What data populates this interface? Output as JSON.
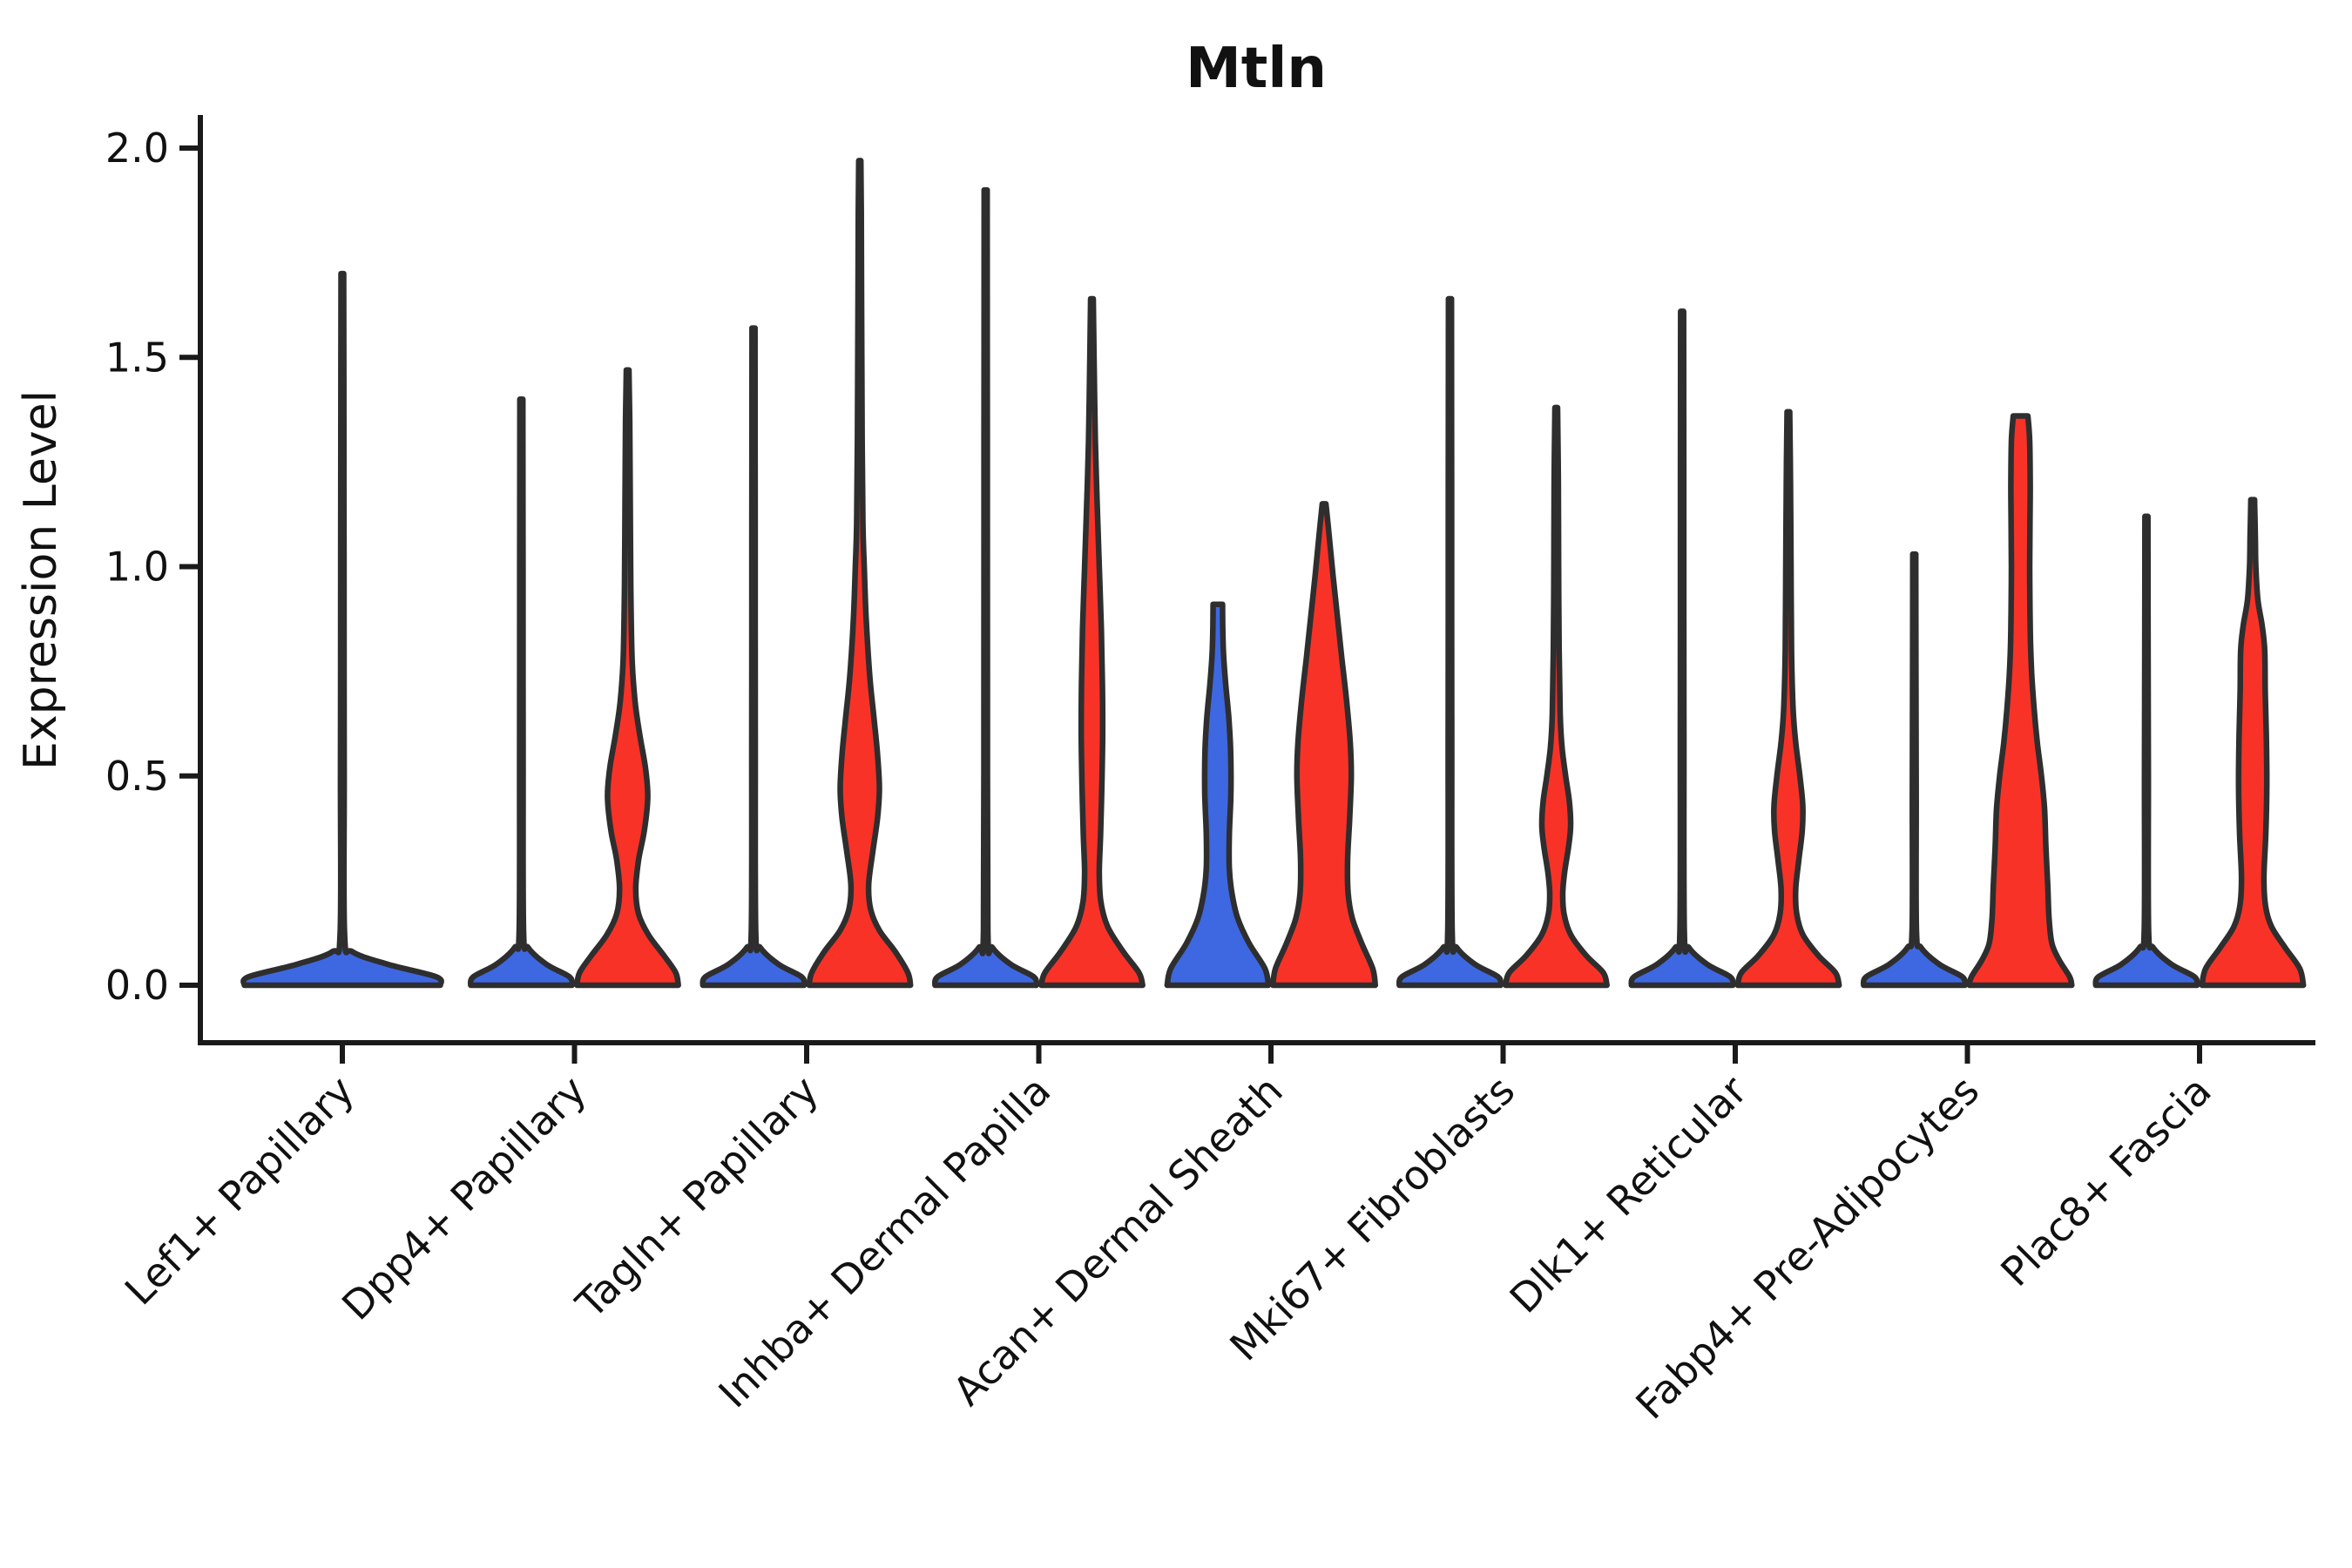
{
  "title": "Mtln",
  "ylabel": "Expression Level",
  "chart_data": {
    "type": "violin",
    "title": "Mtln",
    "xlabel": "",
    "ylabel": "Expression Level",
    "ylim": [
      -0.14,
      2.07
    ],
    "yticks": [
      "0.0",
      "0.5",
      "1.0",
      "1.5",
      "2.0"
    ],
    "ytick_values": [
      0.0,
      0.5,
      1.0,
      1.5,
      2.0
    ],
    "grid": false,
    "legend": "none",
    "categories": [
      "Lef1+ Papillary",
      "Dpp4+ Papillary",
      "Tagln+ Papillary",
      "Inhba+ Dermal Papilla",
      "Acan+ Dermal Sheath",
      "Mki67+ Fibroblasts",
      "Dlk1+ Reticular",
      "Fabp4+ Pre-Adipocytes",
      "Plac8+ Fascia"
    ],
    "groups": [
      {
        "key": "blue",
        "color": "#3E68E1"
      },
      {
        "key": "red",
        "color": "#F93228"
      }
    ],
    "outline_color": "#2E2E2E",
    "axis_color": "#1A1A1A",
    "violins": [
      {
        "category": 0,
        "group": "blue",
        "span": "full",
        "cap": "point",
        "max": 1.7,
        "profile": [
          [
            0,
            0.97
          ],
          [
            0.02,
            0.93
          ],
          [
            0.05,
            0.45
          ],
          [
            0.08,
            0.1
          ],
          [
            0.12,
            0.022
          ],
          [
            0.5,
            0.018
          ],
          [
            1.0,
            0.016
          ],
          [
            1.4,
            0.015
          ],
          [
            1.7,
            0.013
          ]
        ]
      },
      {
        "category": 1,
        "group": "blue",
        "span": "half",
        "cap": "point",
        "max": 1.4,
        "profile": [
          [
            0,
            0.97
          ],
          [
            0.02,
            0.92
          ],
          [
            0.05,
            0.48
          ],
          [
            0.09,
            0.13
          ],
          [
            0.13,
            0.042
          ],
          [
            0.55,
            0.034
          ],
          [
            1.0,
            0.031
          ],
          [
            1.4,
            0.028
          ]
        ]
      },
      {
        "category": 1,
        "group": "red",
        "span": "half",
        "cap": "point",
        "max": 1.47,
        "profile": [
          [
            0,
            0.97
          ],
          [
            0.03,
            0.92
          ],
          [
            0.07,
            0.7
          ],
          [
            0.12,
            0.4
          ],
          [
            0.17,
            0.21
          ],
          [
            0.23,
            0.155
          ],
          [
            0.3,
            0.21
          ],
          [
            0.37,
            0.32
          ],
          [
            0.45,
            0.385
          ],
          [
            0.52,
            0.34
          ],
          [
            0.6,
            0.23
          ],
          [
            0.68,
            0.14
          ],
          [
            0.78,
            0.085
          ],
          [
            0.95,
            0.06
          ],
          [
            1.15,
            0.05
          ],
          [
            1.35,
            0.04
          ],
          [
            1.47,
            0.025
          ]
        ]
      },
      {
        "category": 2,
        "group": "blue",
        "span": "half",
        "cap": "point",
        "max": 1.57,
        "profile": [
          [
            0,
            0.97
          ],
          [
            0.02,
            0.92
          ],
          [
            0.05,
            0.48
          ],
          [
            0.09,
            0.13
          ],
          [
            0.13,
            0.042
          ],
          [
            0.6,
            0.034
          ],
          [
            1.1,
            0.031
          ],
          [
            1.57,
            0.028
          ]
        ]
      },
      {
        "category": 2,
        "group": "red",
        "span": "half",
        "cap": "point",
        "max": 1.97,
        "profile": [
          [
            0,
            0.97
          ],
          [
            0.03,
            0.92
          ],
          [
            0.08,
            0.68
          ],
          [
            0.13,
            0.38
          ],
          [
            0.18,
            0.21
          ],
          [
            0.24,
            0.17
          ],
          [
            0.32,
            0.25
          ],
          [
            0.4,
            0.34
          ],
          [
            0.47,
            0.375
          ],
          [
            0.55,
            0.34
          ],
          [
            0.64,
            0.27
          ],
          [
            0.74,
            0.19
          ],
          [
            0.88,
            0.12
          ],
          [
            1.0,
            0.085
          ],
          [
            1.1,
            0.06
          ],
          [
            1.3,
            0.045
          ],
          [
            1.6,
            0.035
          ],
          [
            1.85,
            0.028
          ],
          [
            1.97,
            0.02
          ]
        ]
      },
      {
        "category": 3,
        "group": "blue",
        "span": "half",
        "cap": "point",
        "max": 1.9,
        "profile": [
          [
            0,
            0.97
          ],
          [
            0.02,
            0.92
          ],
          [
            0.05,
            0.48
          ],
          [
            0.09,
            0.13
          ],
          [
            0.13,
            0.042
          ],
          [
            0.7,
            0.034
          ],
          [
            1.3,
            0.031
          ],
          [
            1.9,
            0.028
          ]
        ]
      },
      {
        "category": 3,
        "group": "red",
        "span": "half",
        "cap": "point",
        "max": 1.64,
        "profile": [
          [
            0,
            0.97
          ],
          [
            0.03,
            0.9
          ],
          [
            0.08,
            0.6
          ],
          [
            0.14,
            0.3
          ],
          [
            0.2,
            0.17
          ],
          [
            0.27,
            0.14
          ],
          [
            0.36,
            0.165
          ],
          [
            0.48,
            0.19
          ],
          [
            0.6,
            0.205
          ],
          [
            0.72,
            0.2
          ],
          [
            0.85,
            0.18
          ],
          [
            1.0,
            0.14
          ],
          [
            1.15,
            0.1
          ],
          [
            1.3,
            0.065
          ],
          [
            1.5,
            0.04
          ],
          [
            1.64,
            0.025
          ]
        ]
      },
      {
        "category": 4,
        "group": "blue",
        "span": "half",
        "cap": "flat",
        "max": 0.91,
        "profile": [
          [
            0,
            0.97
          ],
          [
            0.04,
            0.9
          ],
          [
            0.1,
            0.6
          ],
          [
            0.16,
            0.38
          ],
          [
            0.22,
            0.27
          ],
          [
            0.28,
            0.22
          ],
          [
            0.36,
            0.22
          ],
          [
            0.46,
            0.25
          ],
          [
            0.56,
            0.245
          ],
          [
            0.64,
            0.21
          ],
          [
            0.72,
            0.15
          ],
          [
            0.79,
            0.11
          ],
          [
            0.85,
            0.095
          ],
          [
            0.91,
            0.09
          ]
        ]
      },
      {
        "category": 4,
        "group": "red",
        "span": "half",
        "cap": "point",
        "max": 1.15,
        "profile": [
          [
            0,
            0.98
          ],
          [
            0.04,
            0.93
          ],
          [
            0.1,
            0.72
          ],
          [
            0.16,
            0.54
          ],
          [
            0.22,
            0.46
          ],
          [
            0.3,
            0.45
          ],
          [
            0.4,
            0.49
          ],
          [
            0.5,
            0.52
          ],
          [
            0.58,
            0.5
          ],
          [
            0.68,
            0.43
          ],
          [
            0.78,
            0.34
          ],
          [
            0.88,
            0.255
          ],
          [
            0.98,
            0.17
          ],
          [
            1.07,
            0.1
          ],
          [
            1.15,
            0.035
          ]
        ]
      },
      {
        "category": 5,
        "group": "blue",
        "span": "half",
        "cap": "point",
        "max": 1.64,
        "profile": [
          [
            0,
            0.97
          ],
          [
            0.02,
            0.92
          ],
          [
            0.05,
            0.48
          ],
          [
            0.09,
            0.13
          ],
          [
            0.13,
            0.042
          ],
          [
            0.65,
            0.034
          ],
          [
            1.2,
            0.031
          ],
          [
            1.64,
            0.028
          ]
        ]
      },
      {
        "category": 5,
        "group": "red",
        "span": "half",
        "cap": "point",
        "max": 1.38,
        "profile": [
          [
            0,
            0.97
          ],
          [
            0.03,
            0.9
          ],
          [
            0.07,
            0.58
          ],
          [
            0.12,
            0.28
          ],
          [
            0.17,
            0.15
          ],
          [
            0.22,
            0.125
          ],
          [
            0.27,
            0.16
          ],
          [
            0.33,
            0.235
          ],
          [
            0.38,
            0.275
          ],
          [
            0.44,
            0.25
          ],
          [
            0.5,
            0.18
          ],
          [
            0.57,
            0.11
          ],
          [
            0.65,
            0.075
          ],
          [
            0.8,
            0.055
          ],
          [
            1.0,
            0.045
          ],
          [
            1.2,
            0.04
          ],
          [
            1.38,
            0.025
          ]
        ]
      },
      {
        "category": 6,
        "group": "blue",
        "span": "half",
        "cap": "point",
        "max": 1.61,
        "profile": [
          [
            0,
            0.97
          ],
          [
            0.02,
            0.92
          ],
          [
            0.05,
            0.48
          ],
          [
            0.09,
            0.13
          ],
          [
            0.13,
            0.042
          ],
          [
            0.65,
            0.034
          ],
          [
            1.2,
            0.031
          ],
          [
            1.61,
            0.028
          ]
        ]
      },
      {
        "category": 6,
        "group": "red",
        "span": "half",
        "cap": "point",
        "max": 1.37,
        "profile": [
          [
            0,
            0.97
          ],
          [
            0.03,
            0.9
          ],
          [
            0.07,
            0.58
          ],
          [
            0.12,
            0.28
          ],
          [
            0.17,
            0.16
          ],
          [
            0.23,
            0.14
          ],
          [
            0.3,
            0.2
          ],
          [
            0.37,
            0.265
          ],
          [
            0.43,
            0.275
          ],
          [
            0.5,
            0.22
          ],
          [
            0.58,
            0.14
          ],
          [
            0.66,
            0.09
          ],
          [
            0.8,
            0.06
          ],
          [
            1.0,
            0.05
          ],
          [
            1.2,
            0.04
          ],
          [
            1.37,
            0.025
          ]
        ]
      },
      {
        "category": 7,
        "group": "blue",
        "span": "half",
        "cap": "point",
        "max": 1.03,
        "profile": [
          [
            0,
            0.97
          ],
          [
            0.02,
            0.92
          ],
          [
            0.05,
            0.48
          ],
          [
            0.09,
            0.13
          ],
          [
            0.13,
            0.042
          ],
          [
            0.45,
            0.036
          ],
          [
            0.75,
            0.032
          ],
          [
            1.03,
            0.028
          ]
        ]
      },
      {
        "category": 7,
        "group": "red",
        "span": "half",
        "cap": "flat",
        "max": 1.36,
        "profile": [
          [
            0,
            0.98
          ],
          [
            0.02,
            0.94
          ],
          [
            0.06,
            0.74
          ],
          [
            0.1,
            0.6
          ],
          [
            0.16,
            0.545
          ],
          [
            0.24,
            0.52
          ],
          [
            0.33,
            0.485
          ],
          [
            0.42,
            0.46
          ],
          [
            0.5,
            0.4
          ],
          [
            0.58,
            0.32
          ],
          [
            0.66,
            0.26
          ],
          [
            0.74,
            0.215
          ],
          [
            0.82,
            0.19
          ],
          [
            0.9,
            0.18
          ],
          [
            1.0,
            0.175
          ],
          [
            1.1,
            0.18
          ],
          [
            1.2,
            0.185
          ],
          [
            1.3,
            0.175
          ],
          [
            1.36,
            0.14
          ]
        ]
      },
      {
        "category": 8,
        "group": "blue",
        "span": "half",
        "cap": "point",
        "max": 1.12,
        "profile": [
          [
            0,
            0.97
          ],
          [
            0.02,
            0.92
          ],
          [
            0.05,
            0.48
          ],
          [
            0.09,
            0.13
          ],
          [
            0.13,
            0.042
          ],
          [
            0.5,
            0.036
          ],
          [
            0.8,
            0.032
          ],
          [
            1.12,
            0.028
          ]
        ]
      },
      {
        "category": 8,
        "group": "red",
        "span": "half",
        "cap": "point",
        "max": 1.16,
        "profile": [
          [
            0,
            0.97
          ],
          [
            0.04,
            0.9
          ],
          [
            0.09,
            0.62
          ],
          [
            0.14,
            0.36
          ],
          [
            0.19,
            0.245
          ],
          [
            0.26,
            0.215
          ],
          [
            0.36,
            0.25
          ],
          [
            0.48,
            0.27
          ],
          [
            0.6,
            0.26
          ],
          [
            0.7,
            0.24
          ],
          [
            0.8,
            0.23
          ],
          [
            0.86,
            0.18
          ],
          [
            0.92,
            0.1
          ],
          [
            1.0,
            0.06
          ],
          [
            1.07,
            0.05
          ],
          [
            1.16,
            0.035
          ]
        ]
      }
    ]
  }
}
